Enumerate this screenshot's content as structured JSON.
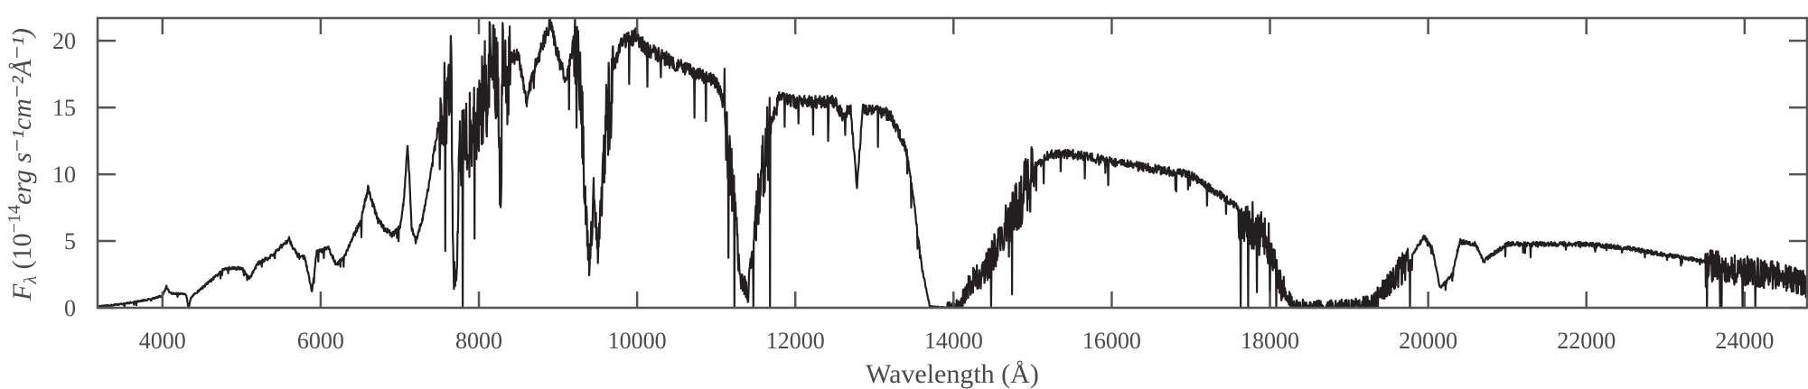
{
  "chart_data": {
    "type": "line",
    "title": "",
    "xlabel": "Wavelength (Å)",
    "ylabel": {
      "prefix": "F",
      "sub": "λ",
      "text": " (10",
      "exp": "−14",
      "units": "erg s⁻¹cm⁻²Å⁻¹)"
    },
    "ylabel_full": "Fλ (10^-14 erg s^-1 cm^-2 Å^-1)",
    "xlim": [
      3180,
      24790
    ],
    "ylim": [
      0,
      21.7
    ],
    "xticks": [
      4000,
      6000,
      8000,
      10000,
      12000,
      14000,
      16000,
      18000,
      20000,
      22000,
      24000
    ],
    "xtick_labels": [
      "4000",
      "6000",
      "8000",
      "10000",
      "12000",
      "14000",
      "16000",
      "18000",
      "20000",
      "22000",
      "24000"
    ],
    "yticks": [
      0,
      5,
      10,
      15,
      20
    ],
    "ytick_labels": [
      "0",
      "5",
      "10",
      "15",
      "20"
    ],
    "grid": false,
    "colors": {
      "line": "#231f20",
      "axes": "#555555"
    },
    "series": [
      {
        "name": "spectrum",
        "points": [
          [
            3200,
            0.1
          ],
          [
            3500,
            0.3
          ],
          [
            3800,
            0.6
          ],
          [
            4000,
            0.9
          ],
          [
            4050,
            1.6
          ],
          [
            4100,
            1.1
          ],
          [
            4300,
            1.0
          ],
          [
            4330,
            0.0
          ],
          [
            4360,
            0.8
          ],
          [
            4600,
            2.0
          ],
          [
            4800,
            3.0
          ],
          [
            5000,
            3.0
          ],
          [
            5100,
            2.2
          ],
          [
            5200,
            3.3
          ],
          [
            5400,
            4.0
          ],
          [
            5600,
            5.2
          ],
          [
            5700,
            4.0
          ],
          [
            5800,
            3.8
          ],
          [
            5890,
            1.2
          ],
          [
            5950,
            4.2
          ],
          [
            6100,
            4.5
          ],
          [
            6200,
            3.2
          ],
          [
            6300,
            3.9
          ],
          [
            6500,
            6.5
          ],
          [
            6600,
            9.0
          ],
          [
            6700,
            7.0
          ],
          [
            6800,
            6.0
          ],
          [
            6900,
            5.5
          ],
          [
            7000,
            6.0
          ],
          [
            7050,
            8.0
          ],
          [
            7100,
            12.5
          ],
          [
            7150,
            6.0
          ],
          [
            7200,
            5.0
          ],
          [
            7300,
            7.0
          ],
          [
            7500,
            14.0
          ],
          [
            7650,
            17.5
          ],
          [
            7680,
            2.5
          ],
          [
            7720,
            3.0
          ],
          [
            7750,
            12.0
          ],
          [
            8000,
            15.0
          ],
          [
            8100,
            17.5
          ],
          [
            8200,
            19.5
          ],
          [
            8250,
            17.0
          ],
          [
            8270,
            8.0
          ],
          [
            8300,
            18.5
          ],
          [
            8500,
            19.0
          ],
          [
            8600,
            15.5
          ],
          [
            8700,
            18.0
          ],
          [
            8900,
            21.5
          ],
          [
            9000,
            19.0
          ],
          [
            9100,
            17.0
          ],
          [
            9200,
            20.0
          ],
          [
            9300,
            16.0
          ],
          [
            9350,
            7.0
          ],
          [
            9400,
            3.0
          ],
          [
            9450,
            10.0
          ],
          [
            9500,
            4.5
          ],
          [
            9550,
            8.0
          ],
          [
            9600,
            14.0
          ],
          [
            9700,
            18.0
          ],
          [
            9800,
            20.0
          ],
          [
            10000,
            20.5
          ],
          [
            10100,
            19.5
          ],
          [
            10300,
            19.0
          ],
          [
            10600,
            18.0
          ],
          [
            11000,
            17.0
          ],
          [
            11100,
            15.5
          ],
          [
            11200,
            10.0
          ],
          [
            11300,
            3.0
          ],
          [
            11400,
            1.0
          ],
          [
            11450,
            4.0
          ],
          [
            11500,
            7.0
          ],
          [
            11600,
            12.0
          ],
          [
            11800,
            16.0
          ],
          [
            12000,
            15.5
          ],
          [
            12200,
            15.5
          ],
          [
            12500,
            15.5
          ],
          [
            12600,
            14.5
          ],
          [
            12700,
            15.0
          ],
          [
            12780,
            9.0
          ],
          [
            12850,
            15.0
          ],
          [
            13000,
            15.0
          ],
          [
            13200,
            14.5
          ],
          [
            13400,
            12.0
          ],
          [
            13500,
            8.0
          ],
          [
            13600,
            3.0
          ],
          [
            13700,
            0.1
          ],
          [
            14000,
            0.0
          ],
          [
            14100,
            0.5
          ],
          [
            14200,
            2.0
          ],
          [
            14400,
            3.0
          ],
          [
            14600,
            5.5
          ],
          [
            14800,
            8.0
          ],
          [
            15000,
            10.5
          ],
          [
            15200,
            11.5
          ],
          [
            15500,
            11.6
          ],
          [
            16000,
            11.0
          ],
          [
            16500,
            10.5
          ],
          [
            17000,
            10.0
          ],
          [
            17500,
            8.0
          ],
          [
            17800,
            6.5
          ],
          [
            18000,
            5.0
          ],
          [
            18100,
            2.5
          ],
          [
            18300,
            0.2
          ],
          [
            18600,
            0.1
          ],
          [
            19000,
            0.2
          ],
          [
            19300,
            0.5
          ],
          [
            19500,
            2.0
          ],
          [
            19800,
            4.0
          ],
          [
            19950,
            5.4
          ],
          [
            20050,
            4.5
          ],
          [
            20150,
            1.5
          ],
          [
            20300,
            2.5
          ],
          [
            20400,
            5.0
          ],
          [
            20600,
            4.8
          ],
          [
            20700,
            3.5
          ],
          [
            20800,
            4.0
          ],
          [
            21000,
            4.8
          ],
          [
            22000,
            4.8
          ],
          [
            22500,
            4.5
          ],
          [
            23000,
            4.0
          ],
          [
            23500,
            3.5
          ],
          [
            24000,
            3.0
          ],
          [
            24500,
            2.5
          ],
          [
            24790,
            2.0
          ]
        ]
      }
    ]
  }
}
